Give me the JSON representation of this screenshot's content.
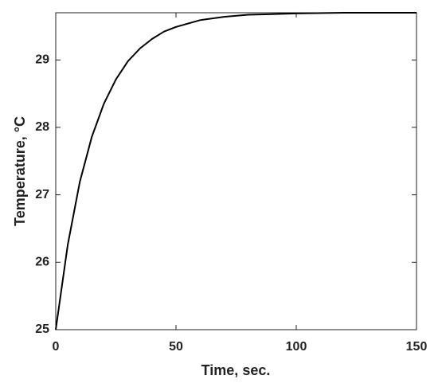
{
  "chart_data": {
    "type": "line",
    "xlabel": "Time, sec.",
    "ylabel": "Temperature, °C",
    "x": [
      0,
      5,
      10,
      15,
      20,
      25,
      30,
      35,
      40,
      45,
      50,
      60,
      70,
      80,
      90,
      100,
      120,
      150
    ],
    "series": [
      {
        "color": "#000000",
        "values": [
          25,
          26.26,
          27.19,
          27.86,
          28.35,
          28.71,
          28.98,
          29.17,
          29.31,
          29.42,
          29.49,
          29.59,
          29.64,
          29.67,
          29.68,
          29.69,
          29.7,
          29.7
        ]
      }
    ],
    "xlim": [
      0,
      150
    ],
    "ylim": [
      25,
      29.7
    ],
    "xticks": [
      0,
      50,
      100,
      150
    ],
    "yticks": [
      25,
      26,
      27,
      28,
      29
    ],
    "grid": false
  }
}
